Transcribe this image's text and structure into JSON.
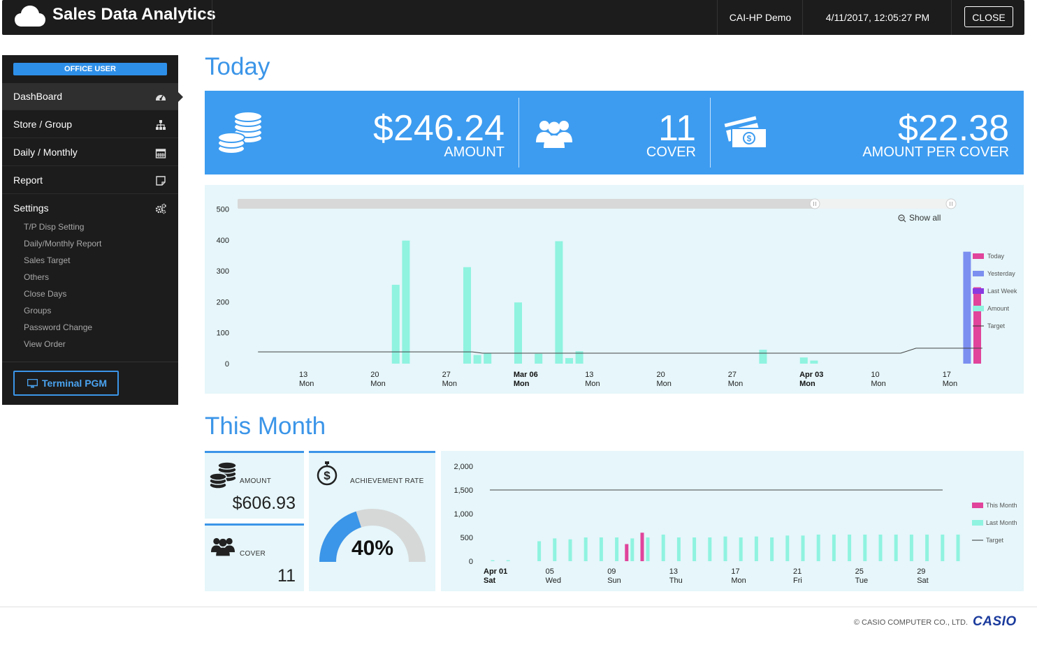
{
  "header": {
    "title": "Sales Data Analytics",
    "user": "CAI-HP Demo",
    "datetime": "4/11/2017, 12:05:27 PM",
    "close_label": "CLOSE"
  },
  "sidebar": {
    "role_badge": "OFFICE USER",
    "items": [
      {
        "label": "DashBoard",
        "icon": "dashboard-icon"
      },
      {
        "label": "Store / Group",
        "icon": "sitemap-icon"
      },
      {
        "label": "Daily / Monthly",
        "icon": "calendar-icon"
      },
      {
        "label": "Report",
        "icon": "report-icon"
      },
      {
        "label": "Settings",
        "icon": "gears-icon"
      }
    ],
    "settings_subitems": [
      "T/P Disp Setting",
      "Daily/Monthly Report",
      "Sales Target",
      "Others",
      "Close Days",
      "Groups",
      "Password Change",
      "View Order"
    ],
    "terminal_button": "Terminal PGM"
  },
  "today": {
    "title": "Today",
    "amount": "$246.24",
    "amount_label": "AMOUNT",
    "cover": "11",
    "cover_label": "COVER",
    "per_cover": "$22.38",
    "per_cover_label": "AMOUNT PER COVER",
    "show_all": "Show all"
  },
  "month": {
    "title": "This Month",
    "amount_label": "AMOUNT",
    "amount": "$606.93",
    "cover_label": "COVER",
    "cover": "11",
    "achievement_label": "ACHIEVEMENT RATE",
    "achievement": "40%",
    "achievement_value": 0.4
  },
  "colors": {
    "accent": "#3b95e8",
    "today": "#e0449b",
    "yesterday": "#7b8ff0",
    "last_week": "#8a3be0",
    "amount": "#8ff3e0",
    "target": "#333333"
  },
  "chart_data": [
    {
      "type": "bar",
      "y_ticks": [
        0,
        100,
        200,
        300,
        400,
        500
      ],
      "ylim": [
        0,
        500
      ],
      "x_ticks": [
        {
          "top": "13",
          "bottom": "Mon",
          "bold": false
        },
        {
          "top": "20",
          "bottom": "Mon",
          "bold": false
        },
        {
          "top": "27",
          "bottom": "Mon",
          "bold": false
        },
        {
          "top": "Mar 06",
          "bottom": "Mon",
          "bold": true
        },
        {
          "top": "13",
          "bottom": "Mon",
          "bold": false
        },
        {
          "top": "20",
          "bottom": "Mon",
          "bold": false
        },
        {
          "top": "27",
          "bottom": "Mon",
          "bold": false
        },
        {
          "top": "Apr 03",
          "bottom": "Mon",
          "bold": true
        },
        {
          "top": "10",
          "bottom": "Mon",
          "bold": false
        },
        {
          "top": "17",
          "bottom": "Mon",
          "bold": false
        }
      ],
      "legend": [
        "Today",
        "Yesterday",
        "Last Week",
        "Amount",
        "Target"
      ],
      "amount_bars": [
        {
          "day": 15.5,
          "value": 255
        },
        {
          "day": 16.5,
          "value": 398
        },
        {
          "day": 22.5,
          "value": 312
        },
        {
          "day": 23.5,
          "value": 28
        },
        {
          "day": 24.5,
          "value": 35
        },
        {
          "day": 27.5,
          "value": 198
        },
        {
          "day": 29.5,
          "value": 32
        },
        {
          "day": 31.5,
          "value": 396
        },
        {
          "day": 32.5,
          "value": 18
        },
        {
          "day": 33.5,
          "value": 40
        },
        {
          "day": 51.5,
          "value": 45
        },
        {
          "day": 55.5,
          "value": 20
        },
        {
          "day": 56.5,
          "value": 10
        }
      ],
      "yesterday_bars": [
        {
          "day": 71.5,
          "value": 362
        }
      ],
      "today_bars": [
        {
          "day": 72.5,
          "value": 247
        }
      ],
      "target_line": [
        {
          "day": 2,
          "value": 38
        },
        {
          "day": 23,
          "value": 38
        },
        {
          "day": 24,
          "value": 34
        },
        {
          "day": 65,
          "value": 34
        },
        {
          "day": 66.5,
          "value": 50
        },
        {
          "day": 73,
          "value": 50
        }
      ]
    },
    {
      "type": "bar",
      "y_ticks": [
        "0",
        "500",
        "1,000",
        "1,500",
        "2,000"
      ],
      "ylim": [
        0,
        2000
      ],
      "x_ticks": [
        {
          "top": "Apr 01",
          "bottom": "Sat",
          "bold": true
        },
        {
          "top": "05",
          "bottom": "Wed",
          "bold": false
        },
        {
          "top": "09",
          "bottom": "Sun",
          "bold": false
        },
        {
          "top": "13",
          "bottom": "Thu",
          "bold": false
        },
        {
          "top": "17",
          "bottom": "Mon",
          "bold": false
        },
        {
          "top": "21",
          "bottom": "Fri",
          "bold": false
        },
        {
          "top": "25",
          "bottom": "Tue",
          "bold": false
        },
        {
          "top": "29",
          "bottom": "Sat",
          "bold": false
        }
      ],
      "legend": [
        "This Month",
        "Last Month",
        "Target"
      ],
      "last_month": [
        20,
        20,
        0,
        420,
        480,
        460,
        500,
        500,
        500,
        480,
        500,
        560,
        500,
        500,
        500,
        520,
        500,
        520,
        500,
        540,
        540,
        560,
        560,
        560,
        560,
        560,
        560,
        560,
        560,
        560,
        560
      ],
      "this_month": [
        0,
        0,
        0,
        0,
        0,
        0,
        0,
        0,
        0,
        360,
        600,
        0,
        0,
        0,
        0,
        0,
        0,
        0,
        0,
        0,
        0,
        0,
        0,
        0,
        0,
        0,
        0,
        0,
        0,
        0,
        0
      ],
      "target": 1500
    }
  ]
}
